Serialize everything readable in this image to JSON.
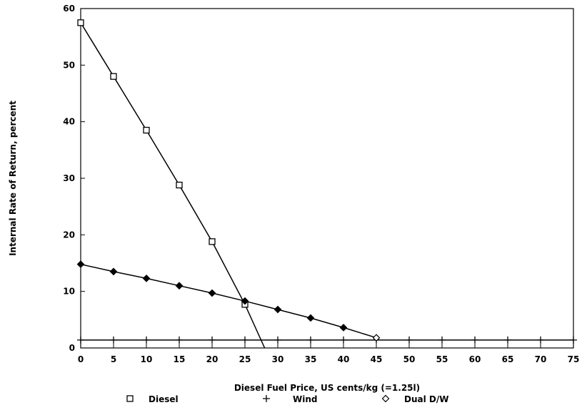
{
  "chart_data": {
    "type": "line",
    "title": "",
    "xlabel": "Diesel Fuel Price, US cents/kg (=1.25l)",
    "ylabel": "Internal Rate of Return, percent",
    "xlim": [
      0,
      75
    ],
    "ylim": [
      0,
      60
    ],
    "x_ticks": [
      0,
      5,
      10,
      15,
      20,
      25,
      30,
      35,
      40,
      45,
      50,
      55,
      60,
      65,
      70,
      75
    ],
    "y_ticks": [
      0,
      10,
      20,
      30,
      40,
      50,
      60
    ],
    "grid": false,
    "legend_position": "bottom",
    "series": [
      {
        "name": "Diesel",
        "marker": "square",
        "color": "#000000",
        "x": [
          0,
          5,
          10,
          15,
          20,
          25
        ],
        "y": [
          57.5,
          48,
          38.5,
          28.8,
          18.8,
          7.7
        ],
        "line_end": [
          28,
          0
        ]
      },
      {
        "name": "Wind",
        "marker": "plus",
        "color": "#000000",
        "x": [
          0,
          5,
          10,
          15,
          20,
          25,
          30,
          35,
          40,
          45,
          50,
          55,
          60,
          65,
          70,
          75
        ],
        "y": [
          1.4,
          1.4,
          1.4,
          1.4,
          1.4,
          1.4,
          1.4,
          1.4,
          1.4,
          1.4,
          1.4,
          1.4,
          1.4,
          1.4,
          1.4,
          1.4
        ]
      },
      {
        "name": "Dual D/W",
        "marker": "diamond",
        "color": "#000000",
        "x": [
          0,
          5,
          10,
          15,
          20,
          25,
          30,
          35,
          40,
          45
        ],
        "y": [
          14.8,
          13.5,
          12.3,
          11.0,
          9.7,
          8.3,
          6.8,
          5.3,
          3.6,
          1.8
        ]
      }
    ]
  }
}
